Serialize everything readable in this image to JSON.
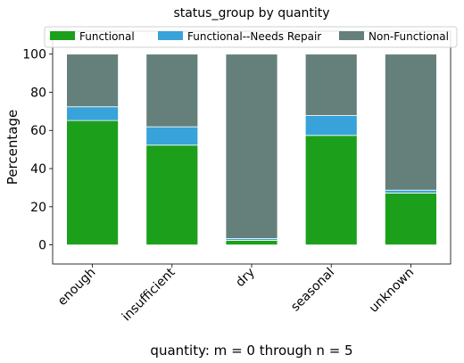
{
  "chart_data": {
    "type": "bar",
    "stacked": true,
    "title": "status_group by quantity",
    "xlabel": "quantity: m = 0 through n = 5",
    "ylabel": "Percentage",
    "categories": [
      "enough",
      "insufficient",
      "dry",
      "seasonal",
      "unknown"
    ],
    "ylim": [
      -10,
      112
    ],
    "yticks": [
      0,
      20,
      40,
      60,
      80,
      100
    ],
    "grid": false,
    "legend_position": "top",
    "series": [
      {
        "name": "Functional",
        "color": "#1ca01c",
        "values": [
          65.2,
          52.3,
          2.4,
          57.4,
          27.2
        ]
      },
      {
        "name": "Functional--Needs Repair",
        "color": "#38a2da",
        "values": [
          7.2,
          9.6,
          0.9,
          10.4,
          1.5
        ]
      },
      {
        "name": "Non-Functional",
        "color": "#65807a",
        "values": [
          27.6,
          38.1,
          96.7,
          32.2,
          71.3
        ]
      }
    ]
  }
}
